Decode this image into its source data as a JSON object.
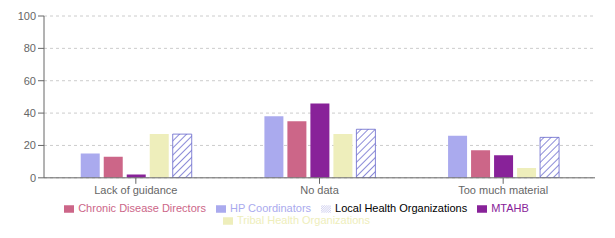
{
  "chart_data": {
    "type": "bar",
    "categories": [
      "Lack of guidance",
      "No data",
      "Too much material"
    ],
    "series": [
      {
        "name": "HP Coordinators",
        "color": "#aaaaee",
        "values": [
          15,
          38,
          26
        ]
      },
      {
        "name": "Chronic Disease Directors",
        "color": "#cc6688",
        "values": [
          13,
          35,
          17
        ]
      },
      {
        "name": "MTAHB",
        "color": "#882299",
        "values": [
          2,
          46,
          14
        ]
      },
      {
        "name": "Tribal Health Organizations",
        "color": "#eeeebb",
        "values": [
          27,
          27,
          6
        ]
      },
      {
        "name": "Local Health Organizations",
        "color": "#ffffff",
        "values": [
          27,
          30,
          25
        ]
      }
    ],
    "ylim": [
      0,
      100
    ],
    "yticks": [
      0,
      20,
      40,
      60,
      80,
      100
    ],
    "grid": true,
    "legend": "bottom"
  }
}
